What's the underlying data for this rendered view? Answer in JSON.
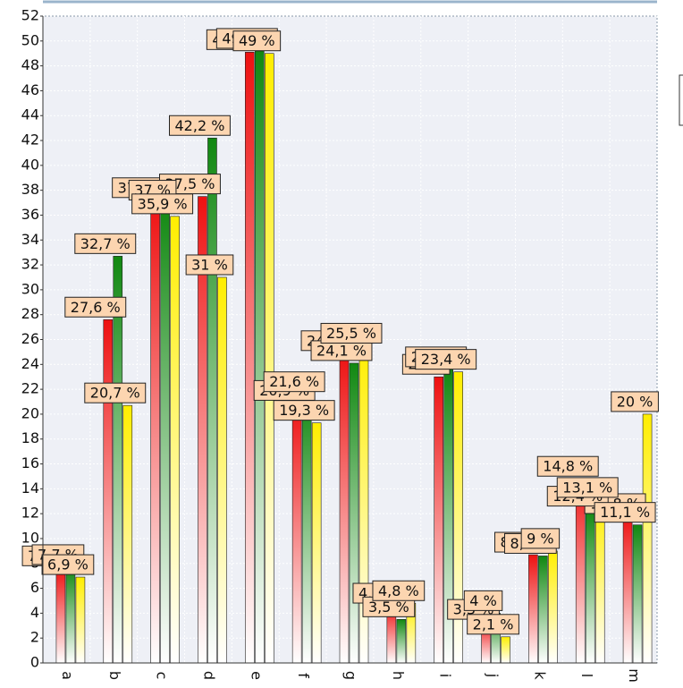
{
  "chart_data": {
    "type": "bar",
    "categories": [
      "a",
      "b",
      "c",
      "d",
      "e",
      "f",
      "g",
      "h",
      "i",
      "j",
      "k",
      "l",
      "m"
    ],
    "ylim": [
      0,
      52
    ],
    "yticks": [
      0,
      2,
      4,
      6,
      8,
      10,
      12,
      14,
      16,
      18,
      20,
      22,
      24,
      26,
      28,
      30,
      32,
      34,
      36,
      38,
      40,
      42,
      44,
      46,
      48,
      50,
      52
    ],
    "grid": true,
    "series": [
      {
        "color": "#ee1111",
        "values": [
          7.6,
          27.6,
          37.2,
          37.5,
          49.1,
          20.9,
          24.9,
          4.6,
          23.0,
          3.3,
          8.7,
          14.8,
          11.8
        ],
        "value_labels": [
          "7,6 %",
          "27,6 %",
          "37,2 %",
          "37,5 %",
          "49,1 %",
          "20,9 %",
          "24,9 %",
          "4,6 %",
          "23 %",
          "3,3 %",
          "8,7 %",
          "14,8 %",
          "11,8 %"
        ]
      },
      {
        "color": "#118811",
        "values": [
          7.7,
          32.7,
          37.0,
          42.2,
          49.2,
          21.6,
          24.1,
          3.5,
          23.6,
          4,
          8.6,
          12.4,
          11.1
        ],
        "value_labels": [
          "7,7 %",
          "32,7 %",
          "37 %",
          "42,2 %",
          "49,2 %",
          "21,6 %",
          "24,1 %",
          "3,5 %",
          "23,6 %",
          "4 %",
          "8,6 %",
          "12,4 %",
          "11,1 %"
        ]
      },
      {
        "color": "#ffee00",
        "values": [
          6.9,
          20.7,
          35.9,
          31,
          49,
          19.3,
          25.5,
          4.8,
          23.4,
          2.1,
          9,
          13.1,
          20
        ],
        "value_labels": [
          "6,9 %",
          "20,7 %",
          "35,9 %",
          "31 %",
          "49 %",
          "19,3 %",
          "25,5 %",
          "4,8 %",
          "23,4 %",
          "2,1 %",
          "9 %",
          "13,1 %",
          "20 %"
        ]
      }
    ]
  }
}
